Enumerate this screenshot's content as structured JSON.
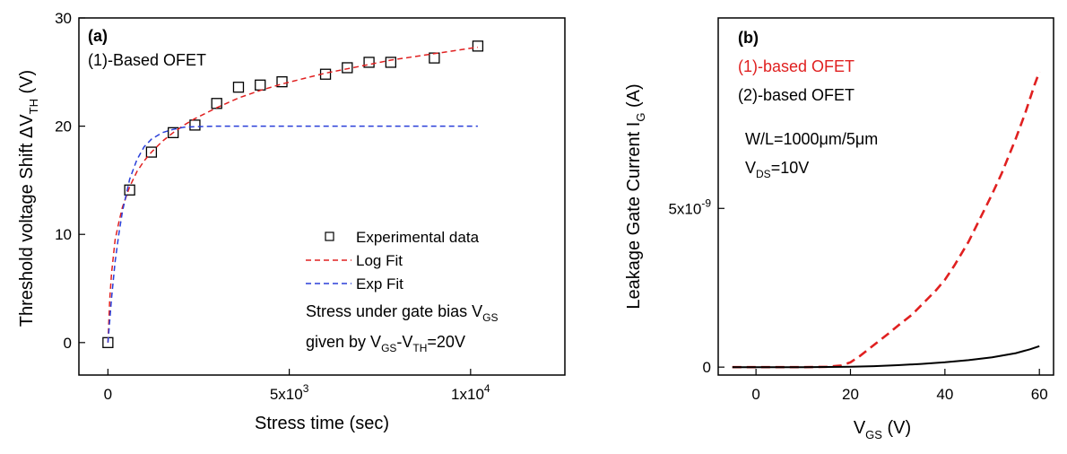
{
  "chart_data": [
    {
      "type": "scatter",
      "panel_label": "(a)",
      "annotation_device": "(1)-Based OFET",
      "xlabel": "Stress time (sec)",
      "ylabel": "Threshold voltage Shift ΔV",
      "ylabel_sub": "TH",
      "ylabel_unit": " (V)",
      "xlim": [
        -800,
        12600
      ],
      "ylim": [
        -3,
        30
      ],
      "xticks": [
        {
          "value": 0,
          "label": "0"
        },
        {
          "value": 5000,
          "label": "5x10"
        },
        {
          "value": 10000,
          "label": "1x10"
        }
      ],
      "xtick_sup": [
        "",
        "3",
        "4"
      ],
      "yticks": [
        0,
        10,
        20,
        30
      ],
      "legend_position": "bottom-right",
      "series": [
        {
          "name": "Experimental data",
          "marker": "open-square",
          "color": "#000000",
          "x": [
            0,
            600,
            1200,
            1800,
            2400,
            3000,
            3600,
            4200,
            4800,
            6000,
            6600,
            7200,
            7800,
            9000,
            10200
          ],
          "y": [
            0,
            14.1,
            17.6,
            19.4,
            20.1,
            22.1,
            23.6,
            23.8,
            24.1,
            24.8,
            25.4,
            25.9,
            25.9,
            26.3,
            27.4
          ]
        },
        {
          "name": "Log Fit",
          "style": "dashed",
          "color": "#e02020",
          "x": [
            0,
            50,
            100,
            200,
            300,
            400,
            600,
            800,
            1000,
            1200,
            1500,
            1800,
            2100,
            2400,
            3000,
            3600,
            4200,
            4800,
            5400,
            6000,
            6600,
            7200,
            7800,
            8400,
            9000,
            9600,
            10200
          ],
          "y": [
            0,
            4.0,
            6.4,
            9.5,
            11.1,
            12.5,
            14.4,
            15.8,
            16.8,
            17.6,
            18.6,
            19.4,
            20.1,
            20.7,
            21.7,
            22.6,
            23.3,
            23.9,
            24.4,
            24.9,
            25.3,
            25.7,
            26.1,
            26.4,
            26.7,
            27.0,
            27.3
          ]
        },
        {
          "name": "Exp Fit",
          "style": "dashed",
          "color": "#2a3fd9",
          "x": [
            0,
            100,
            200,
            300,
            400,
            600,
            800,
            1000,
            1200,
            1500,
            1800,
            2100,
            2400,
            3000,
            4000,
            6000,
            8000,
            10200
          ],
          "y": [
            0,
            4.1,
            7.5,
            10.0,
            12.1,
            15.1,
            16.9,
            18.1,
            18.8,
            19.4,
            19.7,
            19.9,
            19.95,
            20.0,
            20.0,
            20.0,
            20.0,
            20.0
          ]
        }
      ],
      "stress_note": {
        "line1": "Stress under gate bias V",
        "line1_sub": "GS",
        "line2_a": "given by V",
        "line2_sub1": "GS",
        "line2_b": "-V",
        "line2_sub2": "TH",
        "line2_c": "=20V"
      }
    },
    {
      "type": "line",
      "panel_label": "(b)",
      "xlabel": "V",
      "xlabel_sub": "GS",
      "xlabel_unit": " (V)",
      "ylabel": "Leakage Gate Current I",
      "ylabel_sub": "G",
      "ylabel_unit": " (A)",
      "xlim": [
        -8,
        63
      ],
      "ylim": [
        -0.25,
        11
      ],
      "y_unit_note": "y values in units of 1e-9 A",
      "xticks": [
        0,
        20,
        40,
        60
      ],
      "yticks": [
        {
          "value": 0,
          "label": "0"
        },
        {
          "value": 5,
          "label": "5x10",
          "sup": "-9"
        }
      ],
      "legend_position": "top-left",
      "series": [
        {
          "name": "(1)-based OFET",
          "style": "dashed",
          "color": "#e02020",
          "x": [
            -5,
            0,
            5,
            10,
            15,
            18,
            20,
            22,
            25,
            28,
            30,
            33,
            35,
            38,
            40,
            42,
            45,
            48,
            50,
            52,
            55,
            57,
            59,
            60
          ],
          "y": [
            0,
            0,
            0,
            0,
            0.01,
            0.05,
            0.15,
            0.35,
            0.7,
            1.05,
            1.3,
            1.65,
            1.95,
            2.4,
            2.75,
            3.2,
            3.95,
            4.85,
            5.45,
            6.1,
            7.2,
            8.0,
            8.9,
            9.3
          ]
        },
        {
          "name": "(2)-based OFET",
          "style": "solid",
          "color": "#000000",
          "x": [
            -5,
            0,
            10,
            20,
            25,
            30,
            35,
            40,
            45,
            50,
            55,
            58,
            60
          ],
          "y": [
            0,
            0,
            0,
            0.01,
            0.03,
            0.06,
            0.1,
            0.15,
            0.22,
            0.31,
            0.44,
            0.56,
            0.66
          ]
        }
      ],
      "note_wl": "W/L=1000μm/5μm",
      "note_vds": "V",
      "note_vds_sub": "DS",
      "note_vds_val": "=10V"
    }
  ]
}
